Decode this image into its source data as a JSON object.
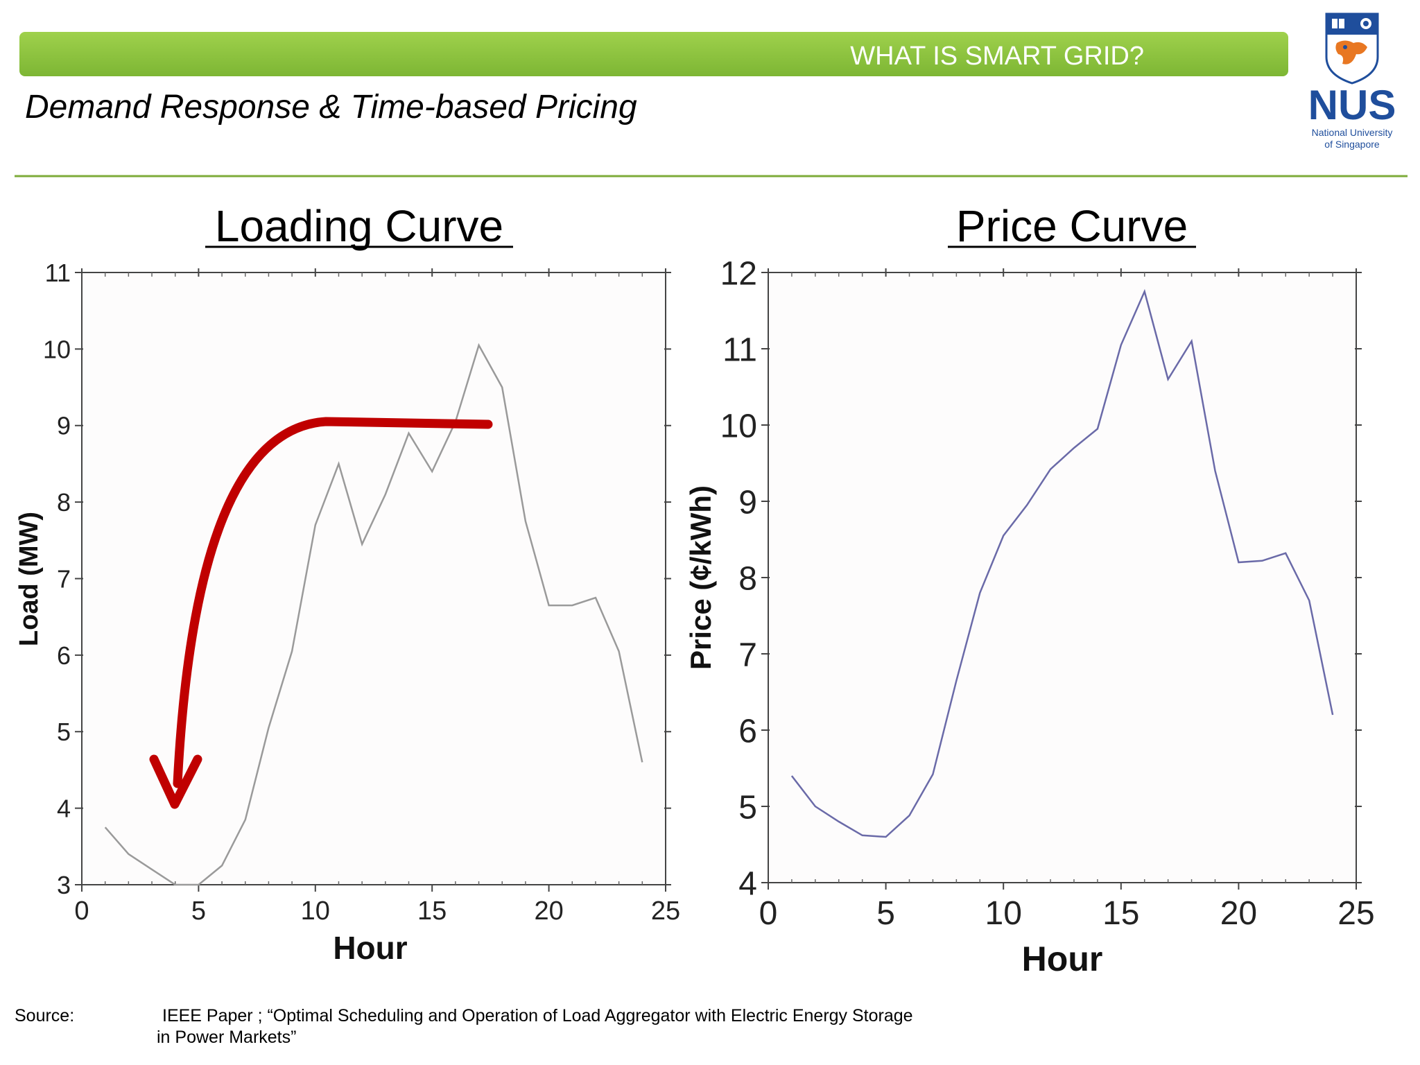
{
  "header": {
    "banner_text": "WHAT IS SMART GRID?",
    "subtitle": "Demand Response & Time-based Pricing",
    "banner_color": "#8CC63F",
    "rule_color": "#7DAB3A"
  },
  "logo": {
    "name": "NUS",
    "line1": "National University",
    "line2": "of Singapore",
    "brand_color": "#1F4E9C",
    "accent_color": "#E87722"
  },
  "source": {
    "label": "Source:",
    "text": "IEEE  Paper ; “Optimal Scheduling and Operation of Load Aggregator with Electric Energy Storage in Power Markets”"
  },
  "annotation": {
    "arrow_color": "#C00000",
    "meaning": "shift load from peak to off-peak"
  },
  "chart_data": [
    {
      "type": "line",
      "title": "Loading Curve",
      "xlabel": "Hour",
      "ylabel": "Load (MW)",
      "xlim": [
        0,
        25
      ],
      "ylim": [
        3,
        11
      ],
      "xticks": [
        0,
        5,
        10,
        15,
        20,
        25
      ],
      "yticks": [
        3,
        4,
        5,
        6,
        7,
        8,
        9,
        10,
        11
      ],
      "grid": false,
      "series": [
        {
          "color": "#9a9a9a",
          "x": [
            1,
            2,
            3,
            4,
            5,
            6,
            7,
            8,
            9,
            10,
            11,
            12,
            13,
            14,
            15,
            16,
            17,
            18,
            19,
            20,
            21,
            22,
            23,
            24
          ],
          "y": [
            3.75,
            3.4,
            3.2,
            3.0,
            3.0,
            3.25,
            3.85,
            5.05,
            6.05,
            7.7,
            8.5,
            7.45,
            8.1,
            8.9,
            8.4,
            9.05,
            10.05,
            9.5,
            7.75,
            6.65,
            6.65,
            6.75,
            6.05,
            4.6
          ]
        }
      ]
    },
    {
      "type": "line",
      "title": "Price Curve",
      "xlabel": "Hour",
      "ylabel": "Price (¢/kWh)",
      "xlim": [
        0,
        25
      ],
      "ylim": [
        4,
        12
      ],
      "xticks": [
        0,
        5,
        10,
        15,
        20,
        25
      ],
      "yticks": [
        4,
        5,
        6,
        7,
        8,
        9,
        10,
        11,
        12
      ],
      "grid": false,
      "series": [
        {
          "color": "#6a6aa8",
          "x": [
            1,
            2,
            3,
            4,
            5,
            6,
            7,
            8,
            9,
            10,
            11,
            12,
            13,
            14,
            15,
            16,
            17,
            18,
            19,
            20,
            21,
            22,
            23,
            24
          ],
          "y": [
            5.4,
            5.0,
            4.8,
            4.62,
            4.6,
            4.88,
            5.42,
            6.65,
            7.8,
            8.55,
            8.95,
            9.42,
            9.7,
            9.95,
            11.05,
            11.75,
            10.6,
            11.1,
            9.4,
            8.2,
            8.22,
            8.32,
            7.7,
            6.2
          ]
        }
      ]
    }
  ]
}
